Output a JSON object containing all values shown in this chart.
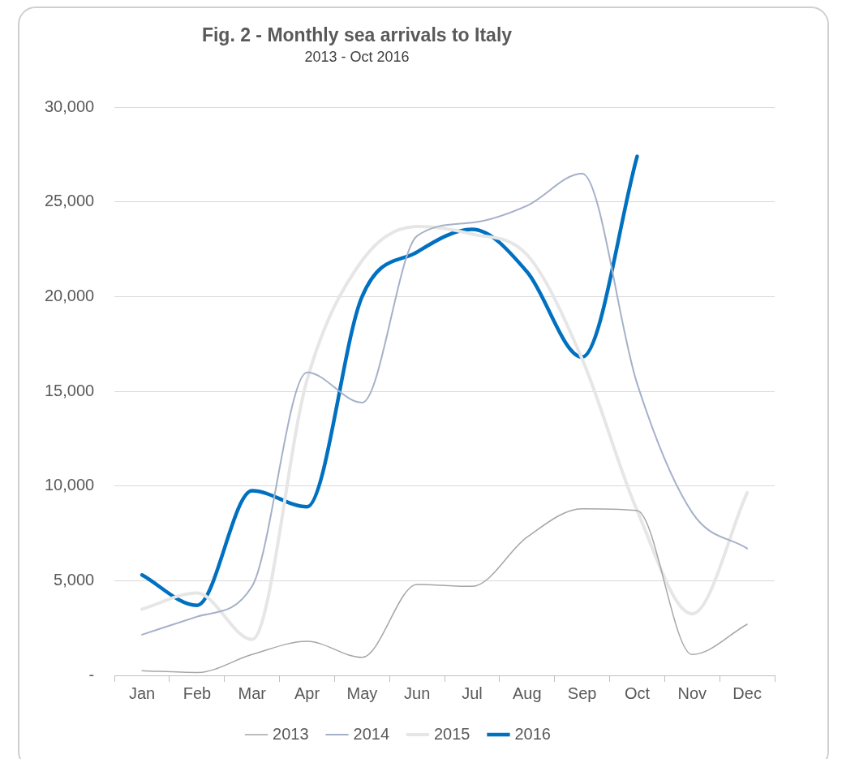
{
  "chart_data": {
    "type": "line",
    "title": "Fig. 2 - Monthly sea arrivals to Italy",
    "subtitle": "2013 - Oct 2016",
    "categories": [
      "Jan",
      "Feb",
      "Mar",
      "Apr",
      "May",
      "Jun",
      "Jul",
      "Aug",
      "Sep",
      "Oct",
      "Nov",
      "Dec"
    ],
    "series": [
      {
        "name": "2013",
        "color": "#a6a6a6",
        "values": [
          250,
          150,
          1100,
          1800,
          950,
          4800,
          4700,
          7300,
          8800,
          8700,
          1100,
          2700
        ]
      },
      {
        "name": "2014",
        "color": "#a5b1c9",
        "values": [
          2150,
          3100,
          4700,
          16000,
          14400,
          23200,
          23900,
          24800,
          26500,
          15400,
          8600,
          6700
        ]
      },
      {
        "name": "2015",
        "color": "#e6e6e6",
        "values": [
          3500,
          4350,
          1900,
          15600,
          21900,
          23700,
          23300,
          22200,
          16700,
          8700,
          3250,
          9650
        ]
      },
      {
        "name": "2016",
        "color": "#0070c0",
        "values": [
          5300,
          3700,
          9750,
          8900,
          20000,
          22350,
          23550,
          21300,
          16800,
          27400,
          null,
          null
        ]
      }
    ],
    "ylim": [
      0,
      30000
    ],
    "yticks": [
      {
        "value": 0,
        "label": "-"
      },
      {
        "value": 5000,
        "label": "5,000"
      },
      {
        "value": 10000,
        "label": "10,000"
      },
      {
        "value": 15000,
        "label": "15,000"
      },
      {
        "value": 20000,
        "label": "20,000"
      },
      {
        "value": 25000,
        "label": "25,000"
      },
      {
        "value": 30000,
        "label": "30,000"
      }
    ],
    "grid": "y",
    "legend": "bottom",
    "marker": "none",
    "line_style": "solid"
  }
}
